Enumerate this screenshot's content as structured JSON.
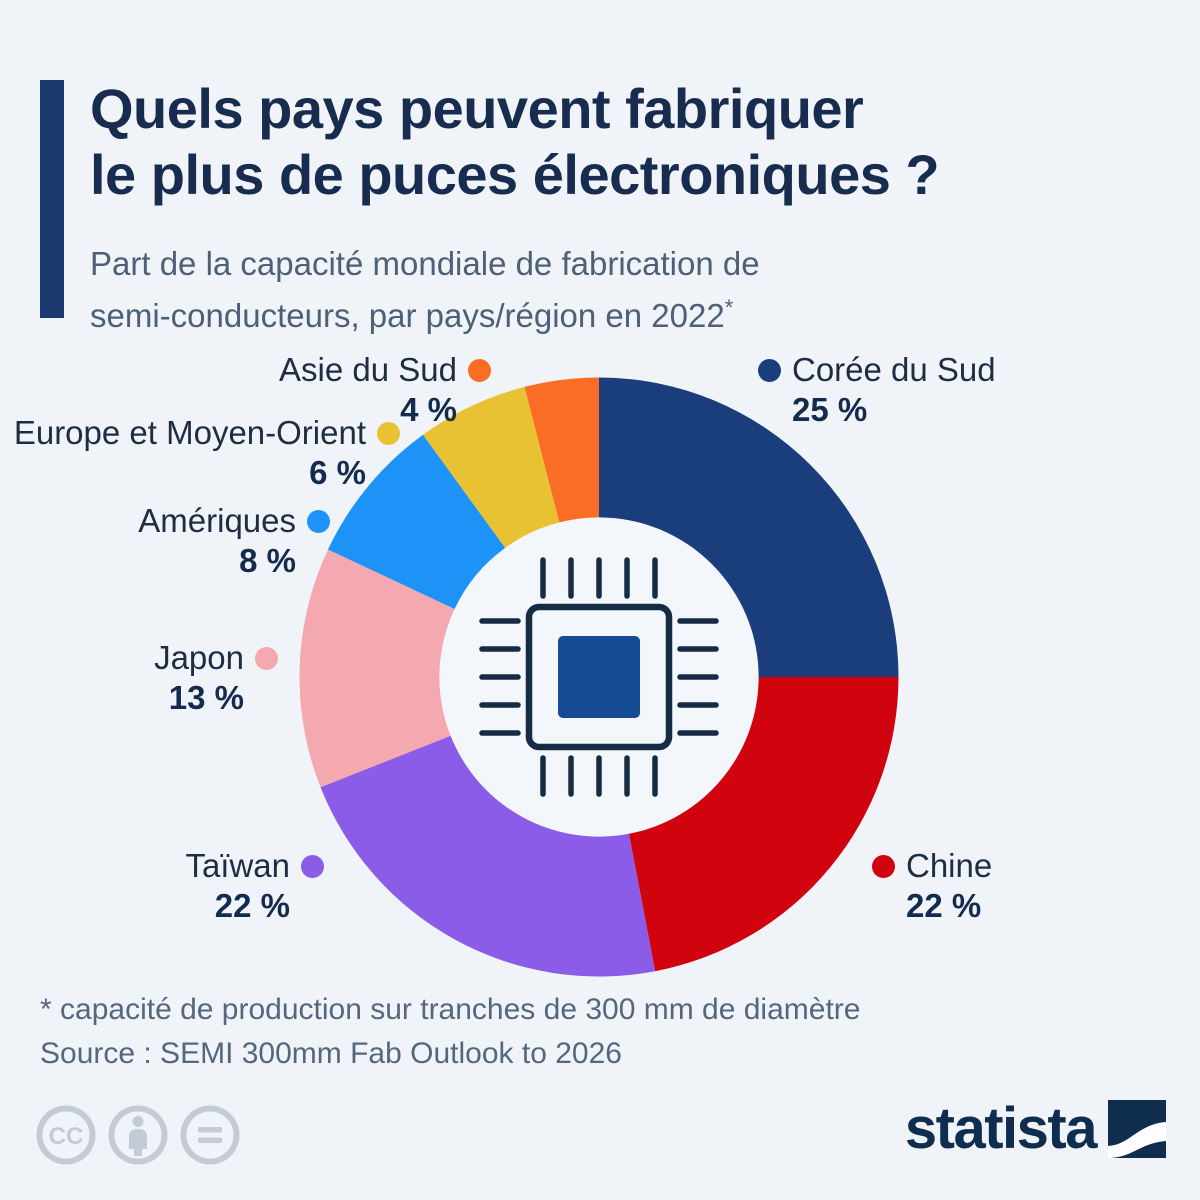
{
  "header": {
    "title_line1": "Quels pays peuvent fabriquer",
    "title_line2": "le plus de puces électroniques ?",
    "subtitle_line1": "Part de la capacité mondiale de fabrication de",
    "subtitle_line2": "semi-conducteurs, par pays/région en 2022",
    "subtitle_asterisk": "*"
  },
  "chart_data": {
    "type": "pie",
    "variant": "donut",
    "title": "Part de la capacité mondiale de fabrication de semi-conducteurs, par pays/région en 2022",
    "unit": "%",
    "direction": "clockwise",
    "start_angle_deg": -90,
    "inner_radius_ratio": 0.533,
    "center_icon": "microchip-icon",
    "legend_position": "around-donut",
    "series": [
      {
        "label": "Corée du Sud",
        "value": 25,
        "value_label": "25 %",
        "color": "#1a3e7c"
      },
      {
        "label": "Chine",
        "value": 22,
        "value_label": "22 %",
        "color": "#d1030f"
      },
      {
        "label": "Taïwan",
        "value": 22,
        "value_label": "22 %",
        "color": "#8a5ce8"
      },
      {
        "label": "Japon",
        "value": 13,
        "value_label": "13 %",
        "color": "#f4a8b0"
      },
      {
        "label": "Amériques",
        "value": 8,
        "value_label": "8 %",
        "color": "#1e93f7"
      },
      {
        "label": "Europe et Moyen-Orient",
        "value": 6,
        "value_label": "6 %",
        "color": "#e8c232"
      },
      {
        "label": "Asie du Sud",
        "value": 4,
        "value_label": "4 %",
        "color": "#f96d25"
      }
    ]
  },
  "footer": {
    "footnote": "* capacité de production sur tranches de 300 mm de diamètre",
    "source": "Source : SEMI 300mm Fab Outlook to 2026"
  },
  "branding": {
    "logo_text": "statista",
    "cc_text": "CC",
    "license_icons": [
      "creative-commons",
      "attribution",
      "no-derivatives"
    ]
  },
  "colors": {
    "background": "#f0f4f8",
    "hole_fill": "#f3f6fa",
    "accent_bar": "#1a3a70",
    "title": "#172c4e",
    "subtitle": "#4d6078",
    "label_text": "#1e2d42",
    "pct_text": "#132c4e",
    "footer_text": "#55677e",
    "cc_gray": "#c3ccd6",
    "statista_navy": "#0f2d4e",
    "chip_outline": "#152c44",
    "chip_core": "#154a94"
  }
}
